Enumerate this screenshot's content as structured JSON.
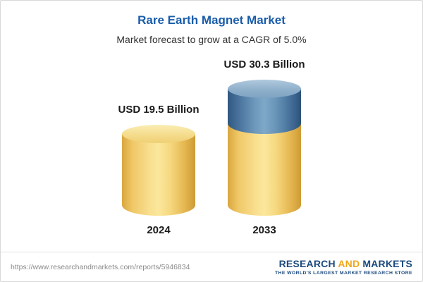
{
  "chart_data": {
    "type": "bar",
    "bar_style": "cylinder-3d",
    "title": "Rare Earth Magnet Market",
    "subtitle": "Market forecast to grow at a CAGR of 5.0%",
    "cagr_percent": 5.0,
    "categories": [
      "2024",
      "2033"
    ],
    "values": [
      19.5,
      30.3
    ],
    "value_labels": [
      "USD 19.5 Billion",
      "USD 30.3 Billion"
    ],
    "unit": "USD Billion",
    "ylim": [
      0,
      30.3
    ],
    "grid": false,
    "legend": "none",
    "colors": {
      "title_accent": "#1A5DAA",
      "base_bar": "#F4D077",
      "growth_segment": "#6F9ABD"
    },
    "annotations": [
      "2033 bar: yellow lower portion equals 2024 base value (19.5), blue upper portion is growth up to 30.3"
    ]
  },
  "footer": {
    "url": "https://www.researchandmarkets.com/reports/5946834",
    "logo": {
      "part1": "RESEARCH ",
      "part2": "AND",
      "part3": " MARKETS",
      "tagline": "THE WORLD'S LARGEST MARKET RESEARCH STORE",
      "colors": {
        "blue": "#1C4A7E",
        "orange": "#F2A71B"
      }
    }
  }
}
